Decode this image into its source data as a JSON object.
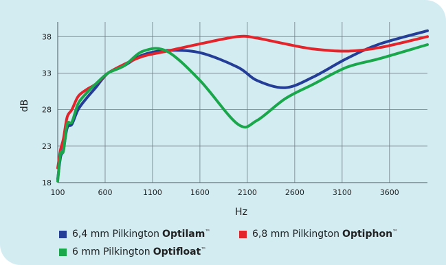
{
  "chart_data": {
    "type": "line",
    "xlabel": "Hz",
    "ylabel": "dB",
    "xlim": [
      100,
      4000
    ],
    "ylim": [
      18,
      40
    ],
    "x_ticks": [
      100,
      600,
      1100,
      1600,
      2100,
      2600,
      3100,
      3600
    ],
    "y_ticks": [
      18,
      23,
      28,
      33,
      38
    ],
    "grid": true,
    "series": [
      {
        "name_prefix": "6,4 mm Pilkington",
        "name_bold": "Optilam",
        "name_mark": "™",
        "color": "#243d96",
        "x": [
          100,
          130,
          160,
          200,
          250,
          315,
          400,
          500,
          630,
          800,
          1000,
          1250,
          1600,
          2000,
          2200,
          2500,
          2800,
          3150,
          3500,
          4000
        ],
        "y": [
          18.5,
          21.5,
          22.5,
          25.5,
          26,
          28,
          29.5,
          31,
          33,
          34,
          35.5,
          36.1,
          35.8,
          33.8,
          32,
          31,
          32.5,
          35,
          37,
          38.8
        ]
      },
      {
        "name_prefix": "6,8 mm Pilkington",
        "name_bold": "Optiphon",
        "name_mark": "™",
        "color": "#e3242b",
        "x": [
          100,
          130,
          160,
          200,
          250,
          315,
          400,
          500,
          630,
          800,
          1000,
          1250,
          1600,
          2000,
          2200,
          2500,
          2800,
          3150,
          3500,
          4000
        ],
        "y": [
          20,
          22.5,
          24,
          27,
          28,
          29.8,
          30.7,
          31.5,
          33,
          34.2,
          35.3,
          36,
          37,
          38,
          37.8,
          37,
          36.3,
          36,
          36.5,
          38
        ]
      },
      {
        "name_prefix": "6 mm Pilkington",
        "name_bold": "Optifloat",
        "name_mark": "™",
        "color": "#1aa64a",
        "x": [
          100,
          130,
          160,
          200,
          250,
          315,
          400,
          500,
          630,
          800,
          1000,
          1250,
          1600,
          2000,
          2200,
          2500,
          2800,
          3150,
          3500,
          4000
        ],
        "y": [
          18.2,
          22,
          22.3,
          26,
          26.3,
          28.8,
          30.2,
          31.5,
          33,
          34,
          36,
          36,
          32,
          26,
          26.5,
          29.5,
          31.5,
          33.8,
          35,
          36.9
        ]
      }
    ]
  }
}
